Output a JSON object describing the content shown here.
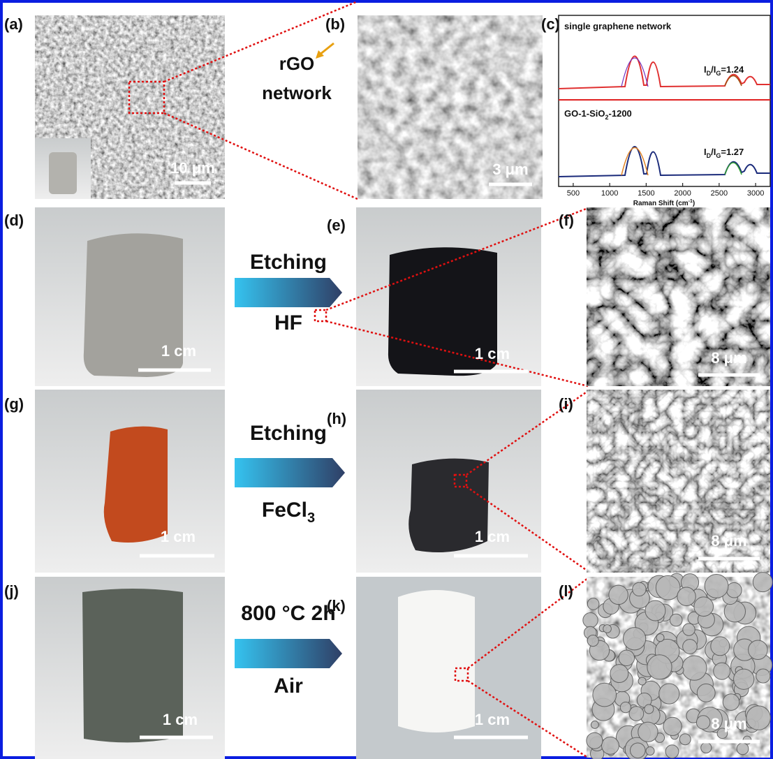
{
  "panels": {
    "a": {
      "label": "(a)",
      "scale": "10 μm"
    },
    "b": {
      "label": "(b)",
      "scale": "3 μm"
    },
    "c": {
      "label": "(c)"
    },
    "d": {
      "label": "(d)",
      "scale": "1 cm"
    },
    "e": {
      "label": "(e)",
      "scale": "1 cm"
    },
    "f": {
      "label": "(f)",
      "scale": "8 μm"
    },
    "g": {
      "label": "(g)",
      "scale": "1 cm"
    },
    "h": {
      "label": "(h)",
      "scale": "1 cm"
    },
    "i": {
      "label": "(i)",
      "scale": "8 μm"
    },
    "j": {
      "label": "(j)",
      "scale": "1 cm"
    },
    "k": {
      "label": "(k)",
      "scale": "1 cm"
    },
    "l": {
      "label": "(l)",
      "scale": "8 μm"
    }
  },
  "annotation": {
    "line1": "rGO",
    "line2": "network"
  },
  "arrows": [
    {
      "top": "Etching",
      "bottom": "HF"
    },
    {
      "top": "Etching",
      "bottom": {
        "main": "FeCl",
        "sub": "3"
      }
    },
    {
      "top": "800 °C 2h",
      "bottom": "Air"
    }
  ],
  "raman": {
    "spectra": [
      {
        "name": "single graphene network",
        "ratio": {
          "i1": "I",
          "s1": "D",
          "mid": "/I",
          "s2": "G",
          "value": "=1.24"
        }
      },
      {
        "name": {
          "main": "GO-1-SiO",
          "sub": "2",
          "rest": "-1200"
        },
        "ratio": {
          "i1": "I",
          "s1": "D",
          "mid": "/I",
          "s2": "G",
          "value": "=1.27"
        }
      }
    ],
    "xlabel": {
      "main": "Raman Shift (cm",
      "sup": "-1",
      "rest": ")"
    },
    "xlim": [
      300,
      3200
    ],
    "xticks": [
      500,
      1000,
      1500,
      2000,
      2500,
      3000
    ]
  }
}
